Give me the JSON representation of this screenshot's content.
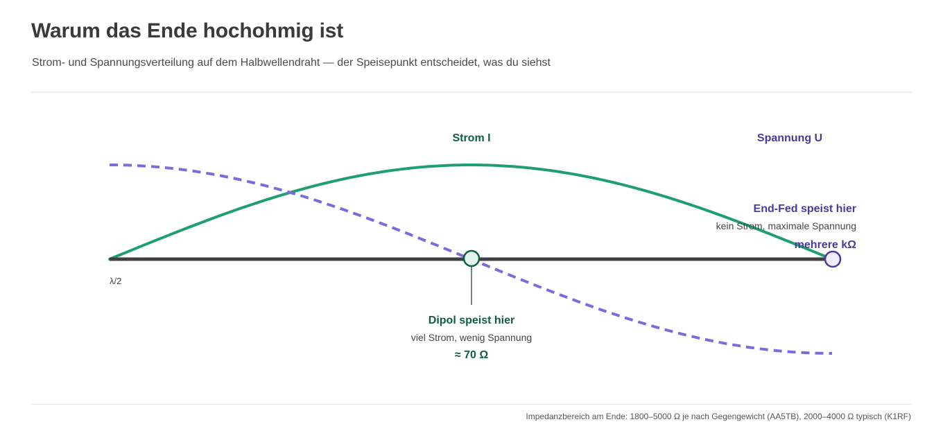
{
  "header": {
    "title": "Warum das Ende hochohmig ist",
    "subtitle": "Strom- und Spannungsverteilung auf dem Halbwellendraht — der Speisepunkt entscheidet, was du siehst"
  },
  "diagram": {
    "current_label": "Strom I",
    "voltage_label": "Spannung U",
    "wire_label": "λ/2",
    "dipole": {
      "title": "Dipol speist hier",
      "description": "viel Strom, wenig Spannung",
      "impedance": "≈ 70 Ω"
    },
    "endfed": {
      "title": "End-Fed speist hier",
      "description": "kein Strom, maximale Spannung",
      "impedance": "mehrere kΩ"
    }
  },
  "footer": {
    "note": "Impedanzbereich am Ende: 1800–5000 Ω je nach Gegengewicht (AA5TB), 2000–4000 Ω typisch (K1RF)"
  },
  "colors": {
    "current": "#1f9e72",
    "voltage": "#7b6cdb",
    "wire": "#404040",
    "dipole_text": "#0f5c45",
    "endfed_text": "#483a9e",
    "dipole_node_fill": "#e2f4ec",
    "endfed_node_fill": "#f0eefc"
  }
}
